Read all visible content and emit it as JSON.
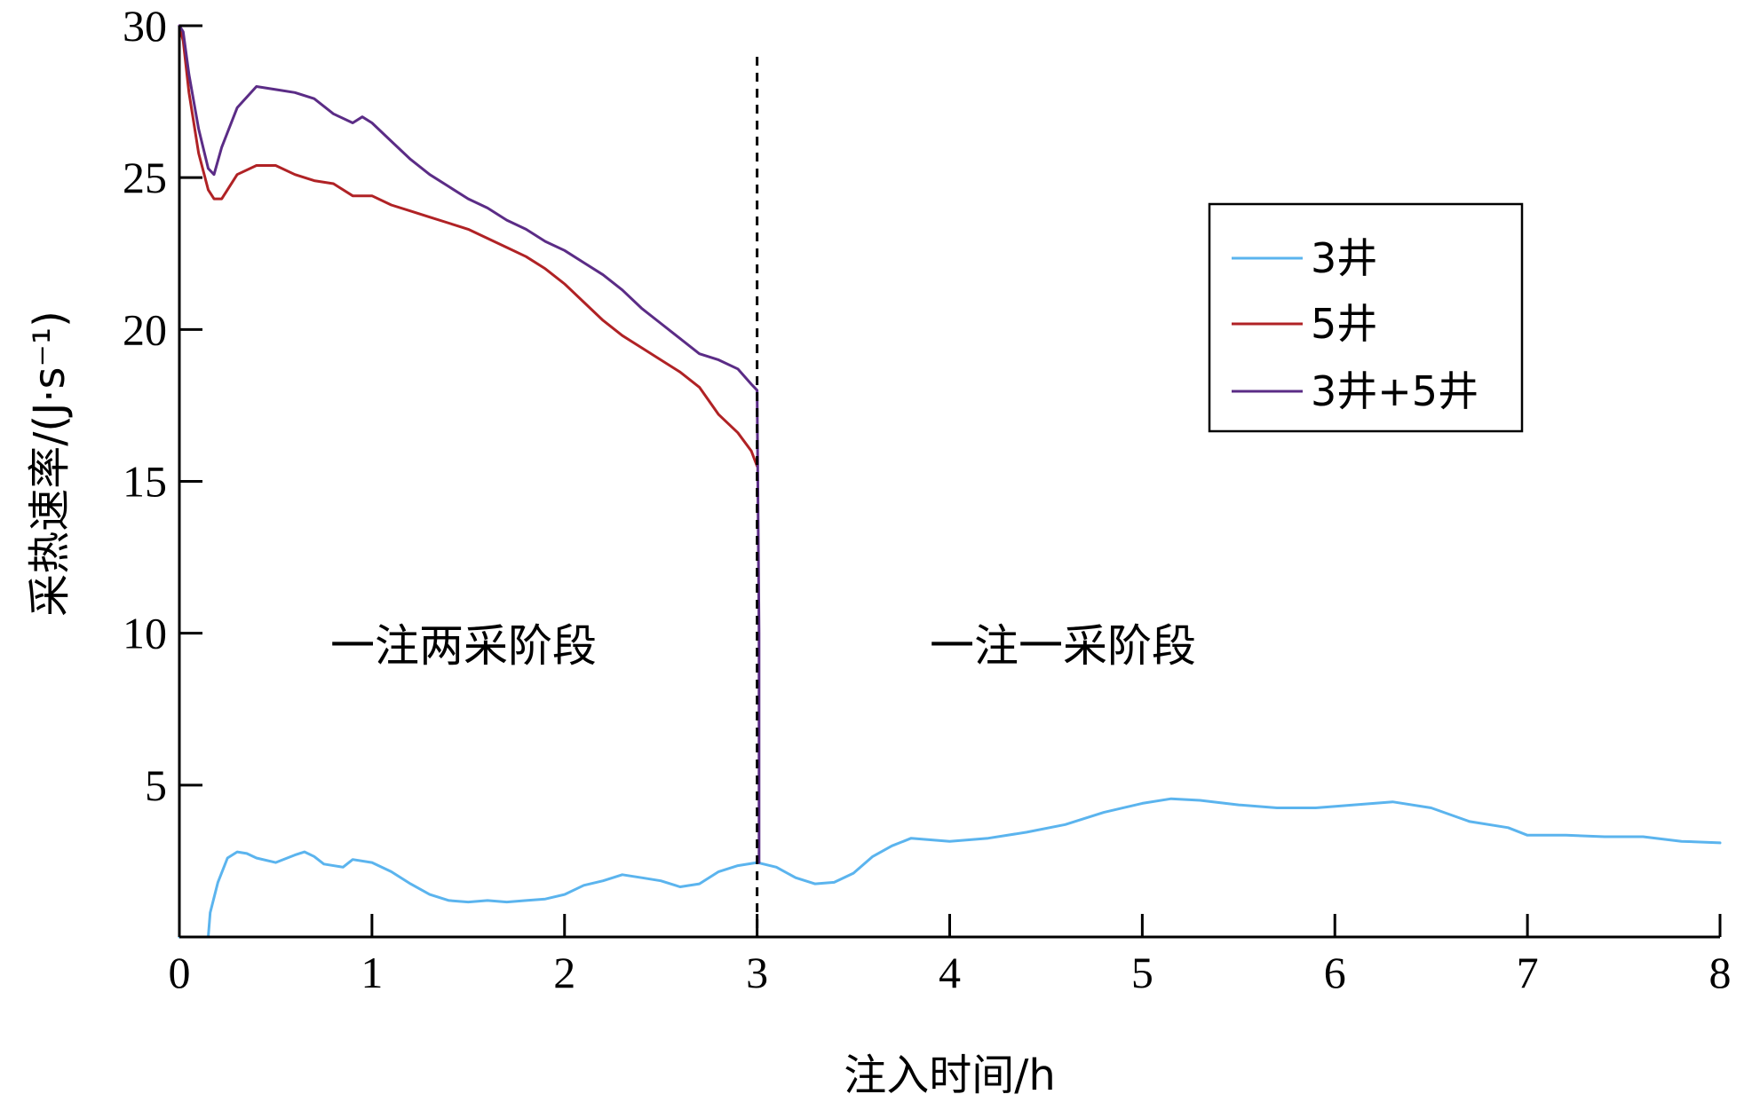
{
  "chart_data": {
    "type": "line",
    "title": "",
    "xlabel": "注入时间/h",
    "ylabel": "采热速率/(J·s⁻¹)",
    "xlim": [
      0,
      8
    ],
    "ylim": [
      0,
      30
    ],
    "xticks": [
      "0",
      "1",
      "2",
      "3",
      "4",
      "5",
      "6",
      "7",
      "8"
    ],
    "yticks": [
      "5",
      "10",
      "15",
      "20",
      "25",
      "30"
    ],
    "grid": false,
    "legend_position": "top-right",
    "vline": {
      "x": 3,
      "style": "dashed"
    },
    "annotations": [
      {
        "text": "一注两采阶段",
        "x": 1.5,
        "y": 10
      },
      {
        "text": "一注一采阶段",
        "x": 4.6,
        "y": 10
      }
    ],
    "series": [
      {
        "name": "3井",
        "color": "#5BB4EE",
        "points": [
          [
            0,
            0
          ],
          [
            0.15,
            0
          ],
          [
            0.16,
            0.8
          ],
          [
            0.2,
            1.8
          ],
          [
            0.25,
            2.6
          ],
          [
            0.3,
            2.8
          ],
          [
            0.35,
            2.75
          ],
          [
            0.4,
            2.6
          ],
          [
            0.5,
            2.45
          ],
          [
            0.6,
            2.7
          ],
          [
            0.65,
            2.8
          ],
          [
            0.7,
            2.65
          ],
          [
            0.75,
            2.4
          ],
          [
            0.85,
            2.3
          ],
          [
            0.9,
            2.55
          ],
          [
            1.0,
            2.45
          ],
          [
            1.1,
            2.15
          ],
          [
            1.2,
            1.75
          ],
          [
            1.3,
            1.4
          ],
          [
            1.4,
            1.2
          ],
          [
            1.5,
            1.15
          ],
          [
            1.6,
            1.2
          ],
          [
            1.7,
            1.15
          ],
          [
            1.8,
            1.2
          ],
          [
            1.9,
            1.25
          ],
          [
            2.0,
            1.4
          ],
          [
            2.1,
            1.7
          ],
          [
            2.2,
            1.85
          ],
          [
            2.3,
            2.05
          ],
          [
            2.4,
            1.95
          ],
          [
            2.5,
            1.85
          ],
          [
            2.6,
            1.65
          ],
          [
            2.7,
            1.75
          ],
          [
            2.8,
            2.15
          ],
          [
            2.9,
            2.35
          ],
          [
            3.0,
            2.45
          ],
          [
            3.1,
            2.3
          ],
          [
            3.2,
            1.95
          ],
          [
            3.3,
            1.75
          ],
          [
            3.4,
            1.8
          ],
          [
            3.5,
            2.1
          ],
          [
            3.6,
            2.65
          ],
          [
            3.7,
            3.0
          ],
          [
            3.8,
            3.25
          ],
          [
            3.9,
            3.2
          ],
          [
            4.0,
            3.15
          ],
          [
            4.2,
            3.25
          ],
          [
            4.4,
            3.45
          ],
          [
            4.6,
            3.7
          ],
          [
            4.8,
            4.1
          ],
          [
            5.0,
            4.4
          ],
          [
            5.15,
            4.55
          ],
          [
            5.3,
            4.5
          ],
          [
            5.5,
            4.35
          ],
          [
            5.7,
            4.25
          ],
          [
            5.9,
            4.25
          ],
          [
            6.1,
            4.35
          ],
          [
            6.3,
            4.45
          ],
          [
            6.5,
            4.25
          ],
          [
            6.7,
            3.8
          ],
          [
            6.9,
            3.6
          ],
          [
            7.0,
            3.35
          ],
          [
            7.2,
            3.35
          ],
          [
            7.4,
            3.3
          ],
          [
            7.6,
            3.3
          ],
          [
            7.8,
            3.15
          ],
          [
            8.0,
            3.1
          ]
        ]
      },
      {
        "name": "5井",
        "color": "#B02225",
        "points": [
          [
            0,
            30
          ],
          [
            0.02,
            29.5
          ],
          [
            0.05,
            27.8
          ],
          [
            0.1,
            25.8
          ],
          [
            0.15,
            24.6
          ],
          [
            0.18,
            24.3
          ],
          [
            0.22,
            24.3
          ],
          [
            0.3,
            25.1
          ],
          [
            0.4,
            25.4
          ],
          [
            0.5,
            25.4
          ],
          [
            0.6,
            25.1
          ],
          [
            0.7,
            24.9
          ],
          [
            0.8,
            24.8
          ],
          [
            0.9,
            24.4
          ],
          [
            1.0,
            24.4
          ],
          [
            1.1,
            24.1
          ],
          [
            1.2,
            23.9
          ],
          [
            1.3,
            23.7
          ],
          [
            1.4,
            23.5
          ],
          [
            1.5,
            23.3
          ],
          [
            1.6,
            23.0
          ],
          [
            1.7,
            22.7
          ],
          [
            1.8,
            22.4
          ],
          [
            1.9,
            22.0
          ],
          [
            2.0,
            21.5
          ],
          [
            2.1,
            20.9
          ],
          [
            2.2,
            20.3
          ],
          [
            2.3,
            19.8
          ],
          [
            2.4,
            19.4
          ],
          [
            2.5,
            19.0
          ],
          [
            2.6,
            18.6
          ],
          [
            2.7,
            18.1
          ],
          [
            2.8,
            17.2
          ],
          [
            2.9,
            16.6
          ],
          [
            2.97,
            16.0
          ],
          [
            3.0,
            15.5
          ]
        ]
      },
      {
        "name": "3井+5井",
        "color": "#5B2C86",
        "points": [
          [
            0,
            30
          ],
          [
            0.02,
            29.8
          ],
          [
            0.05,
            28.4
          ],
          [
            0.1,
            26.6
          ],
          [
            0.15,
            25.3
          ],
          [
            0.18,
            25.1
          ],
          [
            0.22,
            26.0
          ],
          [
            0.3,
            27.3
          ],
          [
            0.4,
            28.0
          ],
          [
            0.5,
            27.9
          ],
          [
            0.6,
            27.8
          ],
          [
            0.7,
            27.6
          ],
          [
            0.8,
            27.1
          ],
          [
            0.9,
            26.8
          ],
          [
            0.95,
            27.0
          ],
          [
            1.0,
            26.8
          ],
          [
            1.1,
            26.2
          ],
          [
            1.2,
            25.6
          ],
          [
            1.3,
            25.1
          ],
          [
            1.4,
            24.7
          ],
          [
            1.5,
            24.3
          ],
          [
            1.6,
            24.0
          ],
          [
            1.7,
            23.6
          ],
          [
            1.8,
            23.3
          ],
          [
            1.9,
            22.9
          ],
          [
            2.0,
            22.6
          ],
          [
            2.1,
            22.2
          ],
          [
            2.2,
            21.8
          ],
          [
            2.3,
            21.3
          ],
          [
            2.4,
            20.7
          ],
          [
            2.5,
            20.2
          ],
          [
            2.6,
            19.7
          ],
          [
            2.7,
            19.2
          ],
          [
            2.8,
            19.0
          ],
          [
            2.9,
            18.7
          ],
          [
            2.97,
            18.2
          ],
          [
            3.0,
            18.0
          ],
          [
            3.01,
            10.0
          ],
          [
            3.01,
            2.45
          ]
        ]
      }
    ]
  }
}
